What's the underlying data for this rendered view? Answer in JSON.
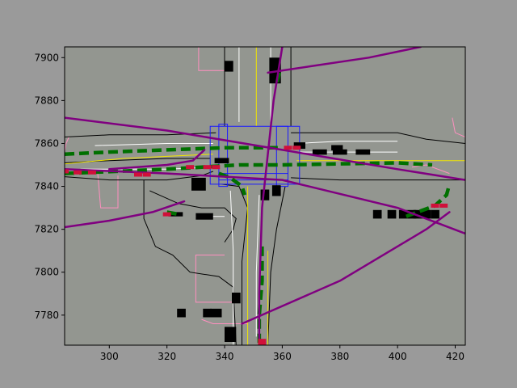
{
  "chart_data": {
    "type": "scatter",
    "title": "",
    "xlabel": "",
    "ylabel": "",
    "xlim": [
      284.5,
      423.5
    ],
    "ylim": [
      7766,
      7905
    ],
    "x_ticks": [
      300,
      320,
      340,
      360,
      380,
      400,
      420
    ],
    "y_ticks": [
      7780,
      7800,
      7820,
      7840,
      7860,
      7880,
      7900
    ],
    "grid": false,
    "legend": "none",
    "colors": {
      "figure_bg": "#9a9a9a",
      "plot_bg": "#939690",
      "road_edge": "#000000",
      "lane_divider": "#ffffff",
      "center_line": "#f2e600",
      "crosswalk": "#1a1aff",
      "sidewalk": "#ff8fbf",
      "trajectory": "#800080",
      "route": "#007000",
      "agent": "#000000",
      "ego_marker": "#d0103a"
    },
    "road_edges": [
      [
        [
          284.5,
          7844.5
        ],
        [
          300,
          7843
        ],
        [
          320,
          7843
        ],
        [
          332,
          7845
        ],
        [
          336,
          7847
        ]
      ],
      [
        [
          284.5,
          7851
        ],
        [
          300,
          7852
        ],
        [
          320,
          7853
        ],
        [
          335,
          7853
        ]
      ],
      [
        [
          284.5,
          7863
        ],
        [
          300,
          7864
        ],
        [
          320,
          7864
        ],
        [
          337,
          7865
        ]
      ],
      [
        [
          340,
          7905
        ],
        [
          340,
          7885
        ],
        [
          340,
          7868
        ]
      ],
      [
        [
          363,
          7905
        ],
        [
          363,
          7885
        ],
        [
          363,
          7868
        ]
      ],
      [
        [
          363,
          7865
        ],
        [
          380,
          7865
        ],
        [
          400,
          7865
        ],
        [
          410,
          7862
        ],
        [
          423.5,
          7860
        ]
      ],
      [
        [
          363,
          7844
        ],
        [
          380,
          7843
        ],
        [
          400,
          7843
        ],
        [
          423.5,
          7843
        ]
      ],
      [
        [
          339,
          7841
        ],
        [
          345,
          7840
        ],
        [
          348,
          7830
        ],
        [
          346,
          7805
        ],
        [
          346,
          7766
        ]
      ],
      [
        [
          361,
          7840
        ],
        [
          358,
          7820
        ],
        [
          356,
          7800
        ],
        [
          355,
          7766
        ]
      ],
      [
        [
          312,
          7843
        ],
        [
          312,
          7825
        ],
        [
          316,
          7812
        ],
        [
          322,
          7808
        ],
        [
          328,
          7800
        ],
        [
          338,
          7798
        ],
        [
          343,
          7793
        ],
        [
          344,
          7766
        ]
      ],
      [
        [
          314,
          7838
        ],
        [
          324,
          7832
        ],
        [
          332,
          7830
        ],
        [
          340,
          7830
        ],
        [
          344,
          7825
        ],
        [
          343,
          7820
        ],
        [
          340,
          7814
        ]
      ]
    ],
    "lane_dividers": [
      [
        [
          290,
          7848
        ],
        [
          320,
          7848
        ],
        [
          336,
          7849
        ]
      ],
      [
        [
          295,
          7859
        ],
        [
          320,
          7860
        ],
        [
          336,
          7860
        ]
      ],
      [
        [
          345,
          7905
        ],
        [
          345,
          7870
        ]
      ],
      [
        [
          356,
          7905
        ],
        [
          356,
          7870
        ]
      ],
      [
        [
          365,
          7856
        ],
        [
          380,
          7856
        ],
        [
          400,
          7856
        ]
      ],
      [
        [
          365,
          7860
        ],
        [
          380,
          7861
        ],
        [
          400,
          7861
        ]
      ],
      [
        [
          342,
          7838
        ],
        [
          343,
          7810
        ],
        [
          343,
          7766
        ]
      ],
      [
        [
          352,
          7836
        ],
        [
          351,
          7800
        ],
        [
          351,
          7770
        ]
      ],
      [
        [
          330,
          7826
        ],
        [
          340,
          7826
        ]
      ]
    ],
    "center_lines": [
      [
        [
          284.5,
          7850.5
        ],
        [
          305,
          7853
        ],
        [
          320,
          7854
        ],
        [
          336,
          7855
        ]
      ],
      [
        [
          351,
          7905
        ],
        [
          351,
          7868
        ]
      ],
      [
        [
          365,
          7852
        ],
        [
          400,
          7852
        ],
        [
          423.5,
          7852
        ]
      ],
      [
        [
          348,
          7840
        ],
        [
          348,
          7766
        ]
      ],
      [
        [
          355,
          7810
        ],
        [
          355,
          7766
        ]
      ]
    ],
    "crosswalks": [
      [
        [
          335,
          7868
        ],
        [
          366,
          7868
        ],
        [
          366,
          7841
        ],
        [
          335,
          7841
        ]
      ],
      [
        [
          338,
          7869
        ],
        [
          341,
          7869
        ],
        [
          341,
          7840
        ],
        [
          338,
          7840
        ]
      ],
      [
        [
          358,
          7868
        ],
        [
          362,
          7868
        ],
        [
          362,
          7840
        ],
        [
          358,
          7840
        ]
      ],
      [
        [
          338,
          7846
        ],
        [
          362,
          7846
        ],
        [
          362,
          7843
        ],
        [
          338,
          7843
        ]
      ]
    ],
    "sidewalks": [
      [
        [
          331,
          7905
        ],
        [
          331,
          7894
        ],
        [
          340,
          7894
        ]
      ],
      [
        [
          284.5,
          7856
        ],
        [
          285,
          7860
        ],
        [
          286,
          7863
        ]
      ],
      [
        [
          296,
          7846
        ],
        [
          297,
          7830
        ],
        [
          303,
          7830
        ],
        [
          303,
          7845
        ]
      ],
      [
        [
          340,
          7808
        ],
        [
          330,
          7808
        ],
        [
          330,
          7786
        ],
        [
          340,
          7786
        ]
      ],
      [
        [
          340,
          7786
        ],
        [
          345,
          7786
        ]
      ],
      [
        [
          332,
          7778
        ],
        [
          336,
          7776
        ],
        [
          348,
          7776
        ]
      ],
      [
        [
          423.5,
          7863
        ],
        [
          420,
          7865
        ],
        [
          419,
          7872
        ]
      ],
      [
        [
          405,
          7849
        ],
        [
          410,
          7850
        ],
        [
          418,
          7846
        ]
      ]
    ],
    "trajectories": [
      [
        [
          284.5,
          7821
        ],
        [
          300,
          7824
        ],
        [
          315,
          7828
        ],
        [
          326,
          7833
        ]
      ],
      [
        [
          284.5,
          7872
        ],
        [
          320,
          7866
        ],
        [
          360,
          7857
        ],
        [
          400,
          7848
        ],
        [
          423.5,
          7843
        ]
      ],
      [
        [
          284.5,
          7848
        ],
        [
          320,
          7846
        ],
        [
          360,
          7843
        ],
        [
          400,
          7830
        ],
        [
          423.5,
          7818
        ]
      ],
      [
        [
          300,
          7848
        ],
        [
          320,
          7850
        ],
        [
          329,
          7852
        ],
        [
          333,
          7857
        ]
      ],
      [
        [
          355,
          7893
        ],
        [
          370,
          7896
        ],
        [
          390,
          7900
        ],
        [
          408,
          7905
        ]
      ],
      [
        [
          360,
          7905
        ],
        [
          357,
          7880
        ],
        [
          353,
          7830
        ],
        [
          352,
          7790
        ],
        [
          352,
          7766
        ]
      ],
      [
        [
          346,
          7776
        ],
        [
          380,
          7796
        ],
        [
          410,
          7820
        ],
        [
          418,
          7828
        ]
      ]
    ],
    "routes": [
      [
        [
          284.5,
          7855
        ],
        [
          300,
          7856
        ],
        [
          320,
          7857
        ],
        [
          340,
          7858
        ],
        [
          360,
          7858
        ]
      ],
      [
        [
          284.5,
          7846
        ],
        [
          320,
          7848
        ],
        [
          345,
          7850
        ],
        [
          360,
          7850
        ],
        [
          400,
          7851
        ],
        [
          412,
          7850
        ]
      ],
      [
        [
          338,
          7846
        ],
        [
          342,
          7844
        ],
        [
          346,
          7840
        ],
        [
          347,
          7836
        ]
      ],
      [
        [
          359,
          7893
        ],
        [
          358,
          7887
        ]
      ],
      [
        [
          353,
          7812
        ],
        [
          353,
          7796
        ],
        [
          352,
          7780
        ],
        [
          352,
          7767
        ]
      ],
      [
        [
          403,
          7826
        ],
        [
          413,
          7831
        ],
        [
          417,
          7836
        ],
        [
          418,
          7841
        ]
      ],
      [
        [
          320,
          7828
        ],
        [
          324,
          7827
        ]
      ]
    ],
    "agents": [
      [
        341.5,
        7896,
        3,
        5
      ],
      [
        357.5,
        7894,
        4,
        12
      ],
      [
        366,
        7859,
        4,
        3
      ],
      [
        373,
        7856,
        5,
        2.5
      ],
      [
        380,
        7856,
        5,
        2.5
      ],
      [
        388,
        7856,
        5,
        2.5
      ],
      [
        379,
        7858,
        4,
        2.5
      ],
      [
        339,
        7852,
        5,
        2.5
      ],
      [
        331,
        7841,
        5,
        6
      ],
      [
        323,
        7827,
        5,
        2
      ],
      [
        333,
        7826,
        6,
        3
      ],
      [
        354,
        7836,
        3,
        5
      ],
      [
        358,
        7838,
        3,
        5
      ],
      [
        325,
        7781,
        3,
        4
      ],
      [
        334,
        7781,
        3,
        4
      ],
      [
        337,
        7781,
        4,
        4
      ],
      [
        344,
        7788,
        3,
        5
      ],
      [
        342,
        7771,
        4,
        7
      ],
      [
        393,
        7827,
        3,
        4
      ],
      [
        398,
        7827,
        3,
        4
      ],
      [
        402,
        7827,
        3,
        4
      ],
      [
        405,
        7827,
        3,
        4
      ],
      [
        407,
        7827,
        3,
        4
      ],
      [
        410,
        7827,
        3,
        4
      ],
      [
        413,
        7827,
        3,
        4
      ]
    ],
    "ego_markers": [
      [
        284.5,
        7847
      ],
      [
        289,
        7846.5
      ],
      [
        294,
        7846.5
      ],
      [
        310,
        7845.5
      ],
      [
        313,
        7845.5
      ],
      [
        328,
        7849
      ],
      [
        334,
        7849
      ],
      [
        337,
        7849
      ],
      [
        362,
        7858
      ],
      [
        365,
        7858
      ],
      [
        320,
        7827
      ],
      [
        413,
        7831
      ],
      [
        416,
        7831
      ],
      [
        353,
        7768
      ],
      [
        353,
        7766.5
      ]
    ]
  }
}
